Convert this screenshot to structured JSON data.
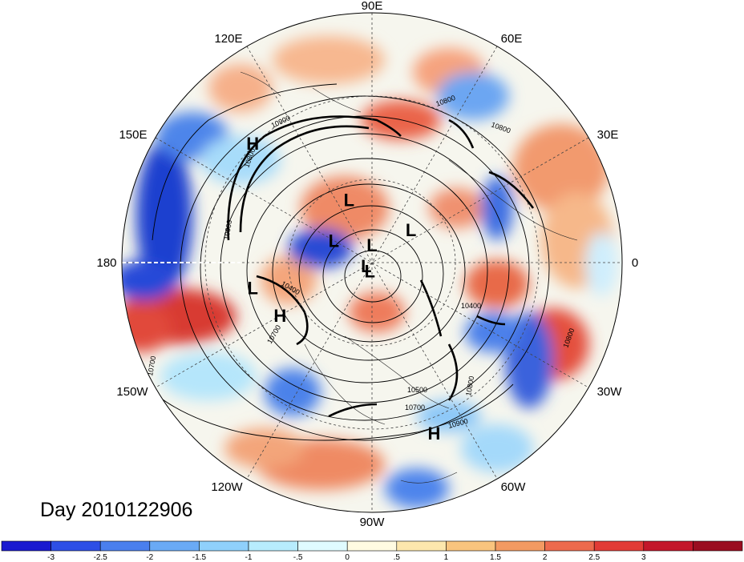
{
  "title": "Day 2010122906",
  "longitude_labels": [
    "90E",
    "60E",
    "30E",
    "0",
    "30W",
    "60W",
    "90W",
    "120W",
    "150W",
    "180",
    "150E",
    "120E"
  ],
  "pressure_systems": [
    {
      "type": "H",
      "lon": 135,
      "lat": 22
    },
    {
      "type": "L",
      "lon": 110,
      "lat": 60
    },
    {
      "type": "L",
      "lon": 150,
      "lat": 70
    },
    {
      "type": "L",
      "lon": 90,
      "lat": 82
    },
    {
      "type": "L",
      "lon": 40,
      "lat": 67
    },
    {
      "type": "L",
      "lon": -150,
      "lat": 87
    },
    {
      "type": "L",
      "lon": -105,
      "lat": 86
    },
    {
      "type": "L",
      "lon": -168,
      "lat": 38
    },
    {
      "type": "H",
      "lon": -150,
      "lat": 44
    },
    {
      "type": "H",
      "lon": -70,
      "lat": 18
    }
  ],
  "contour_labels": [
    "10800",
    "10900",
    "10800",
    "10700",
    "10400",
    "10800",
    "10500",
    "10700",
    "10900",
    "10800",
    "10400",
    "10700",
    "10800",
    "10900"
  ],
  "colorbar": {
    "colors": [
      "#1a1ad0",
      "#2d4fe6",
      "#4a7fee",
      "#6aaaf5",
      "#8fd0fb",
      "#b7ecfd",
      "#e0fbff",
      "#fffbe2",
      "#fde7ad",
      "#f9c47e",
      "#f39a62",
      "#ed6a4d",
      "#e23b36",
      "#c3162a",
      "#9a0d20"
    ],
    "tick_labels": [
      "-3",
      "-2.5",
      "-2",
      "-1.5",
      "-1",
      "-.5",
      "0",
      ".5",
      "1",
      "1.5",
      "2",
      "2.5",
      "3"
    ]
  },
  "chart_data": {
    "type": "heatmap",
    "projection": "north polar stereographic",
    "title": "Day 2010122906",
    "color_levels": [
      -3,
      -2.5,
      -2,
      -1.5,
      -1,
      -0.5,
      0,
      0.5,
      1,
      1.5,
      2,
      2.5,
      3
    ],
    "contour_values": [
      10400,
      10500,
      10700,
      10800,
      10900
    ]
  }
}
